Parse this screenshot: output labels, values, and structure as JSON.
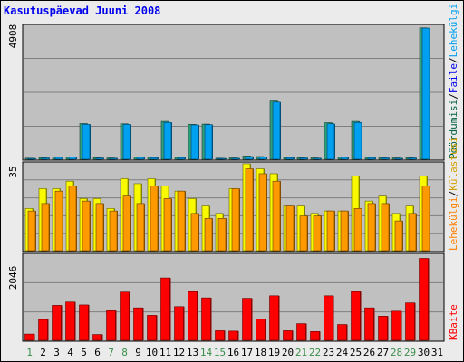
{
  "title": "Kasutuspäevad Juuni 2008",
  "colors": {
    "plot_bg": "#c0c0c0",
    "grid": "#7f7f7f",
    "visits": "#f9f900",
    "pages": "#ff9900",
    "hits_green": "#30a080",
    "files_blue": "#00a0f0",
    "bytes": "#ff0000",
    "weekend_label": "#3a8e4a",
    "weekday_label": "#000000",
    "legend_visits": "#d4a000",
    "legend_pages": "#ff8000",
    "legend_files": "#0000ee",
    "legend_hits": "#006040",
    "legend_bytes": "#ff0000"
  },
  "chart_data": [
    {
      "type": "bar",
      "name": "top",
      "ymax_label": "4908",
      "ylim": [
        0,
        4908
      ],
      "categories": [
        "1",
        "2",
        "3",
        "4",
        "5",
        "6",
        "7",
        "8",
        "9",
        "10",
        "11",
        "12",
        "13",
        "14",
        "15",
        "16",
        "17",
        "18",
        "19",
        "20",
        "21",
        "22",
        "23",
        "24",
        "25",
        "26",
        "27",
        "28",
        "29",
        "30",
        "31"
      ],
      "series": [
        {
          "name": "Pöördumisi",
          "color": "#30a080",
          "values": [
            40,
            60,
            80,
            90,
            1320,
            60,
            50,
            1310,
            80,
            70,
            1400,
            70,
            1290,
            1300,
            40,
            50,
            120,
            100,
            2150,
            70,
            60,
            50,
            1350,
            80,
            1400,
            70,
            60,
            50,
            60,
            4850,
            0
          ]
        },
        {
          "name": "Faile",
          "color": "#00a0f0",
          "values": [
            30,
            50,
            70,
            80,
            1290,
            50,
            40,
            1290,
            70,
            60,
            1360,
            60,
            1270,
            1280,
            30,
            40,
            100,
            90,
            2110,
            60,
            50,
            40,
            1310,
            70,
            1360,
            60,
            50,
            40,
            50,
            4840,
            0
          ]
        }
      ],
      "legend": [
        "Pöördumisi",
        "Faile"
      ]
    },
    {
      "type": "bar",
      "name": "middle",
      "ymax_label": "35",
      "ylim": [
        0,
        35
      ],
      "categories": [
        "1",
        "2",
        "3",
        "4",
        "5",
        "6",
        "7",
        "8",
        "9",
        "10",
        "11",
        "12",
        "13",
        "14",
        "15",
        "16",
        "17",
        "18",
        "19",
        "20",
        "21",
        "22",
        "23",
        "24",
        "25",
        "26",
        "27",
        "28",
        "29",
        "30",
        "31"
      ],
      "series": [
        {
          "name": "Külastusi",
          "color": "#f9f900",
          "values": [
            17,
            25,
            25,
            28,
            21,
            21,
            17,
            29,
            27,
            29,
            26,
            24,
            21,
            18,
            15,
            25,
            35,
            33,
            31,
            18,
            18,
            15,
            16,
            16,
            30,
            20,
            22,
            15,
            18,
            30,
            0
          ]
        },
        {
          "name": "Lehekülgi",
          "color": "#ff9900",
          "values": [
            16,
            19,
            24,
            26,
            20,
            19,
            16,
            22,
            19,
            26,
            21,
            24,
            15,
            13,
            13,
            25,
            33,
            31,
            28,
            18,
            14,
            14,
            16,
            16,
            17,
            19,
            19,
            12,
            15,
            26,
            0
          ]
        }
      ],
      "legend": [
        "Külastusi",
        "Lehekülgi"
      ]
    },
    {
      "type": "bar",
      "name": "bottom",
      "ymax_label": "2046",
      "ylim": [
        0,
        2046
      ],
      "categories": [
        "1",
        "2",
        "3",
        "4",
        "5",
        "6",
        "7",
        "8",
        "9",
        "10",
        "11",
        "12",
        "13",
        "14",
        "15",
        "16",
        "17",
        "18",
        "19",
        "20",
        "21",
        "22",
        "23",
        "24",
        "25",
        "26",
        "27",
        "28",
        "29",
        "30",
        "31"
      ],
      "series": [
        {
          "name": "KBaite",
          "color": "#ff0000",
          "values": [
            150,
            500,
            840,
            920,
            850,
            140,
            710,
            1160,
            780,
            600,
            1500,
            810,
            1170,
            1020,
            230,
            220,
            1010,
            510,
            1070,
            230,
            400,
            210,
            1070,
            380,
            1170,
            780,
            580,
            700,
            900,
            1970,
            0
          ]
        }
      ],
      "legend": [
        "KBaite"
      ]
    }
  ],
  "x_labels": [
    {
      "text": "1",
      "weekend": true
    },
    {
      "text": "2",
      "weekend": false
    },
    {
      "text": "3",
      "weekend": false
    },
    {
      "text": "4",
      "weekend": false
    },
    {
      "text": "5",
      "weekend": false
    },
    {
      "text": "6",
      "weekend": false
    },
    {
      "text": "7",
      "weekend": true
    },
    {
      "text": "8",
      "weekend": true
    },
    {
      "text": "9",
      "weekend": false
    },
    {
      "text": "10",
      "weekend": false
    },
    {
      "text": "11",
      "weekend": false
    },
    {
      "text": "12",
      "weekend": false
    },
    {
      "text": "13",
      "weekend": false
    },
    {
      "text": "14",
      "weekend": true
    },
    {
      "text": "15",
      "weekend": true
    },
    {
      "text": "16",
      "weekend": false
    },
    {
      "text": "17",
      "weekend": false
    },
    {
      "text": "18",
      "weekend": false
    },
    {
      "text": "19",
      "weekend": false
    },
    {
      "text": "20",
      "weekend": false
    },
    {
      "text": "21",
      "weekend": true
    },
    {
      "text": "22",
      "weekend": true
    },
    {
      "text": "23",
      "weekend": false
    },
    {
      "text": "24",
      "weekend": false
    },
    {
      "text": "25",
      "weekend": false
    },
    {
      "text": "26",
      "weekend": false
    },
    {
      "text": "27",
      "weekend": false
    },
    {
      "text": "28",
      "weekend": true
    },
    {
      "text": "29",
      "weekend": true
    },
    {
      "text": "30",
      "weekend": false
    },
    {
      "text": "31",
      "weekend": false
    }
  ],
  "right_legend_top": [
    {
      "text": "Pöördumisi",
      "color": "#006040"
    },
    {
      "text": "/",
      "color": "#000000"
    },
    {
      "text": "Faile",
      "color": "#0000ee"
    },
    {
      "text": "/",
      "color": "#000000"
    },
    {
      "text": "Lehekülgi",
      "color": "#00a0f0"
    }
  ],
  "right_legend_mid": [
    {
      "text": "Lehekülgi",
      "color": "#ff8000"
    },
    {
      "text": "/",
      "color": "#000000"
    },
    {
      "text": "Külastusi",
      "color": "#d4a000"
    }
  ],
  "right_legend_bottom": [
    {
      "text": "KBaite",
      "color": "#ff0000"
    }
  ]
}
